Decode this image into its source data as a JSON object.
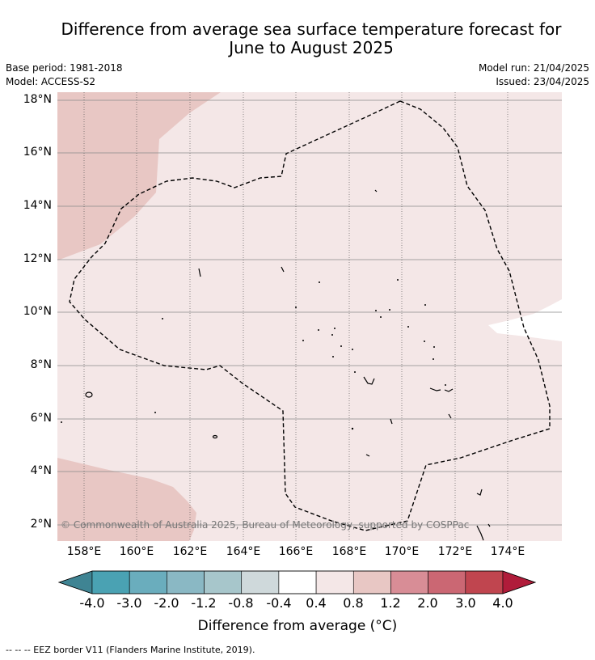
{
  "title": {
    "line1": "Difference from average sea surface temperature forecast for",
    "line2": "June to August 2025"
  },
  "meta": {
    "base_period": "Base period: 1981-2018",
    "model": "Model: ACCESS-S2",
    "model_run": "Model run: 21/04/2025",
    "issued": "Issued: 23/04/2025"
  },
  "map": {
    "lat_labels": [
      "18°N",
      "16°N",
      "14°N",
      "12°N",
      "10°N",
      "8°N",
      "6°N",
      "4°N",
      "2°N"
    ],
    "lon_labels": [
      "158°E",
      "160°E",
      "162°E",
      "164°E",
      "166°E",
      "168°E",
      "170°E",
      "172°E",
      "174°E"
    ],
    "copyright": "© Commonwealth of Australia 2025, Bureau of Meteorology, supported by COSPPac",
    "background_color": "#f4e7e7",
    "warm_color": "#e8c7c4",
    "grid": true
  },
  "colorbar": {
    "title": "Difference from average (°C)",
    "tick_labels": [
      "-4.0",
      "-3.0",
      "-2.0",
      "-1.2",
      "-0.8",
      "-0.4",
      "0.4",
      "0.8",
      "1.2",
      "2.0",
      "3.0",
      "4.0"
    ],
    "colors": [
      "#4aa2b3",
      "#6aadbd",
      "#8ab8c4",
      "#a7c6cb",
      "#cfd9db",
      "#ffffff",
      "#f4e7e7",
      "#e8c7c4",
      "#d88d96",
      "#cb6773",
      "#c0454f"
    ],
    "under_color": "#3f8493",
    "over_color": "#b01c3a"
  },
  "footer": "--  --  -- EEZ border V11 (Flanders Marine Institute, 2019)."
}
